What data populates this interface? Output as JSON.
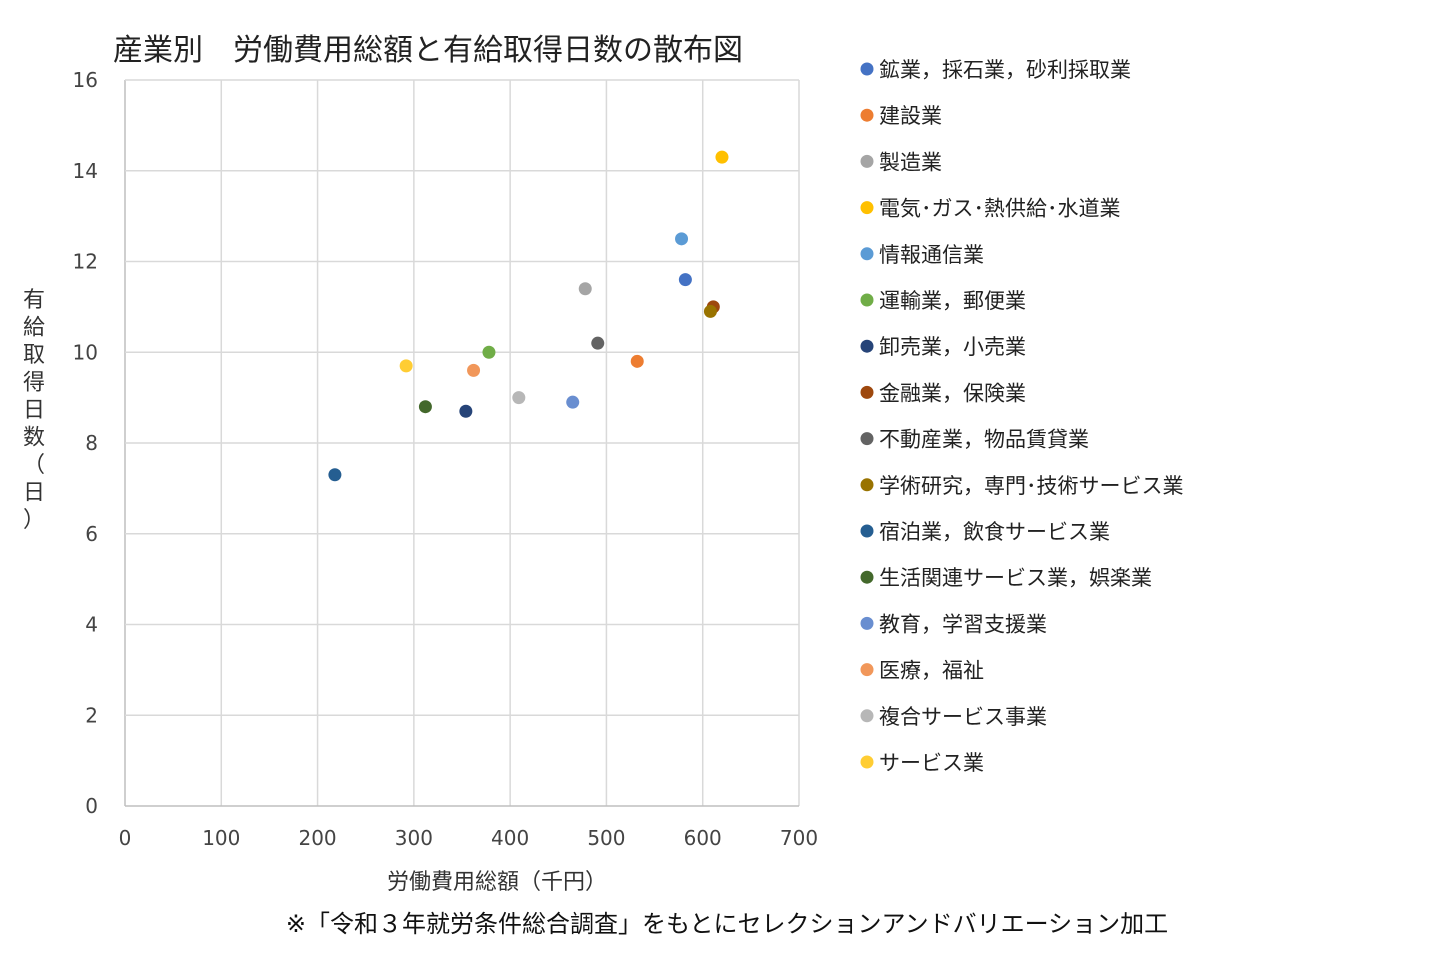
{
  "chart_data": {
    "type": "scatter",
    "title": "産業別　労働費用総額と有給取得日数の散布図",
    "xlabel": "労働費用総額（千円）",
    "ylabel_chars": [
      "有",
      "給",
      "取",
      "得",
      "日",
      "数",
      "（",
      "日",
      "）"
    ],
    "ylabel": "有給取得日数（日）",
    "xlim": [
      0,
      700
    ],
    "ylim": [
      0,
      16
    ],
    "x_ticks": [
      "0",
      "100",
      "200",
      "300",
      "400",
      "500",
      "600",
      "700"
    ],
    "y_ticks": [
      "0",
      "2",
      "4",
      "6",
      "8",
      "10",
      "12",
      "14",
      "16"
    ],
    "grid": true,
    "legend_position": "right",
    "series": [
      {
        "name": "鉱業，採石業，砂利採取業",
        "color": "#4472C4",
        "x": 582,
        "y": 11.6
      },
      {
        "name": "建設業",
        "color": "#ED7D31",
        "x": 532,
        "y": 9.8
      },
      {
        "name": "製造業",
        "color": "#A5A5A5",
        "x": 478,
        "y": 11.4
      },
      {
        "name": "電気･ガス･熱供給･水道業",
        "color": "#FFC000",
        "x": 620,
        "y": 14.3
      },
      {
        "name": "情報通信業",
        "color": "#5B9BD5",
        "x": 578,
        "y": 12.5
      },
      {
        "name": "運輸業，郵便業",
        "color": "#70AD47",
        "x": 378,
        "y": 10.0
      },
      {
        "name": "卸売業，小売業",
        "color": "#264478",
        "x": 354,
        "y": 8.7
      },
      {
        "name": "金融業，保険業",
        "color": "#9E480E",
        "x": 611,
        "y": 11.0
      },
      {
        "name": "不動産業，物品賃貸業",
        "color": "#636363",
        "x": 491,
        "y": 10.2
      },
      {
        "name": "学術研究，専門･技術サービス業",
        "color": "#997300",
        "x": 608,
        "y": 10.9
      },
      {
        "name": "宿泊業，飲食サービス業",
        "color": "#255E91",
        "x": 218,
        "y": 7.3
      },
      {
        "name": "生活関連サービス業，娯楽業",
        "color": "#43682B",
        "x": 312,
        "y": 8.8
      },
      {
        "name": "教育，学習支援業",
        "color": "#698ED0",
        "x": 465,
        "y": 8.9
      },
      {
        "name": "医療，福祉",
        "color": "#F1975A",
        "x": 362,
        "y": 9.6
      },
      {
        "name": "複合サービス事業",
        "color": "#B7B7B7",
        "x": 409,
        "y": 9.0
      },
      {
        "name": "サービス業",
        "color": "#FFCD33",
        "x": 292,
        "y": 9.7
      }
    ]
  },
  "note": "※「令和３年就労条件総合調査」をもとにセレクションアンドバリエーション加工",
  "colors": {
    "grid": "#D9D9D9",
    "axis": "#BFBFBF"
  }
}
